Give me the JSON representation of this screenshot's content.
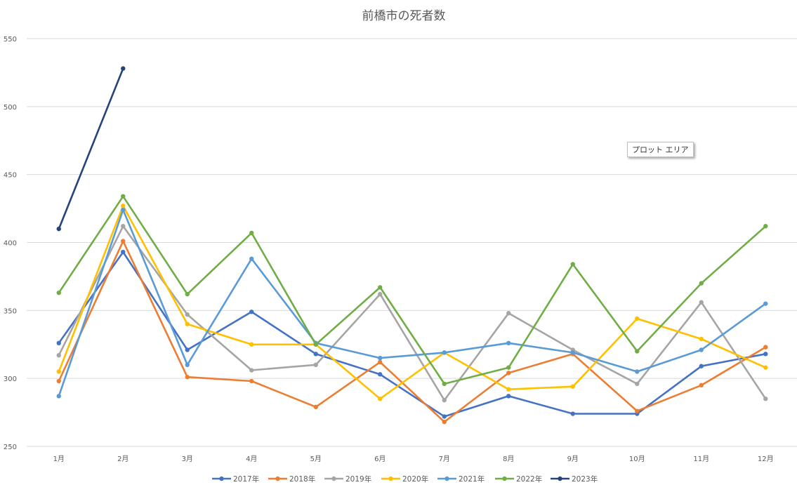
{
  "chart_data": {
    "type": "line",
    "title": "前橋市の死者数",
    "categories": [
      "1月",
      "2月",
      "3月",
      "4月",
      "5月",
      "6月",
      "7月",
      "8月",
      "9月",
      "10月",
      "11月",
      "12月"
    ],
    "ylim": [
      250,
      550
    ],
    "yticks": [
      250,
      300,
      350,
      400,
      450,
      500,
      550
    ],
    "grid": true,
    "legend_position": "bottom",
    "series": [
      {
        "name": "2017年",
        "color": "#4472C4",
        "values": [
          326,
          393,
          321,
          349,
          318,
          303,
          272,
          287,
          274,
          274,
          309,
          318
        ]
      },
      {
        "name": "2018年",
        "color": "#ED7D31",
        "values": [
          298,
          401,
          301,
          298,
          279,
          312,
          268,
          304,
          318,
          276,
          295,
          323
        ]
      },
      {
        "name": "2019年",
        "color": "#A5A5A5",
        "values": [
          317,
          412,
          347,
          306,
          310,
          362,
          284,
          348,
          321,
          296,
          356,
          285
        ]
      },
      {
        "name": "2020年",
        "color": "#FFC000",
        "values": [
          305,
          427,
          340,
          325,
          325,
          285,
          319,
          292,
          294,
          344,
          329,
          308
        ]
      },
      {
        "name": "2021年",
        "color": "#5B9BD5",
        "values": [
          287,
          424,
          310,
          388,
          326,
          315,
          319,
          326,
          319,
          305,
          321,
          355
        ]
      },
      {
        "name": "2022年",
        "color": "#70AD47",
        "values": [
          363,
          434,
          362,
          407,
          325,
          367,
          296,
          308,
          384,
          320,
          370,
          412
        ]
      },
      {
        "name": "2023年",
        "color": "#264478",
        "values": [
          410,
          528,
          null,
          null,
          null,
          null,
          null,
          null,
          null,
          null,
          null,
          null
        ]
      }
    ]
  },
  "tooltip": {
    "label": "プロット エリア"
  }
}
